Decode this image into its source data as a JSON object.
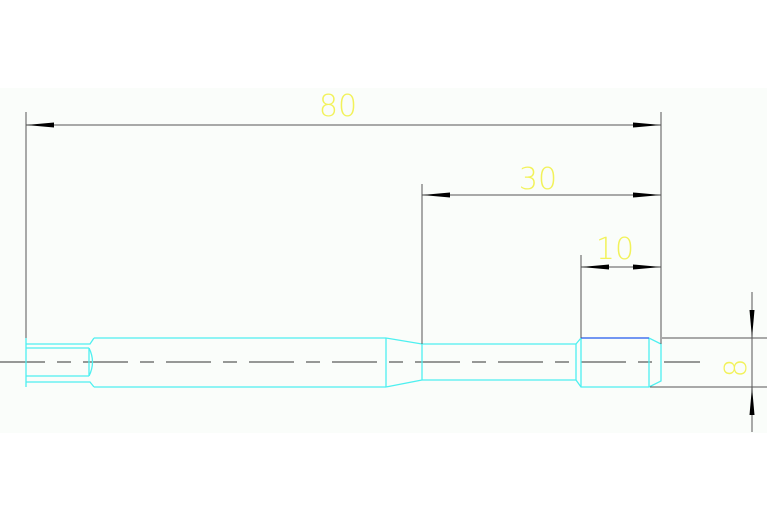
{
  "drawing": {
    "colors": {
      "background": "#fafdfa",
      "outline": "#4ef0f0",
      "dimension_line": "#555555",
      "dimension_text": "#f2f25a",
      "centerline": "#333333",
      "highlight_edge": "#3c5cf0"
    },
    "dimensions": [
      {
        "label": "80",
        "orientation": "horizontal"
      },
      {
        "label": "30",
        "orientation": "horizontal"
      },
      {
        "label": "10",
        "orientation": "horizontal"
      },
      {
        "label": "8",
        "orientation": "vertical"
      }
    ]
  }
}
